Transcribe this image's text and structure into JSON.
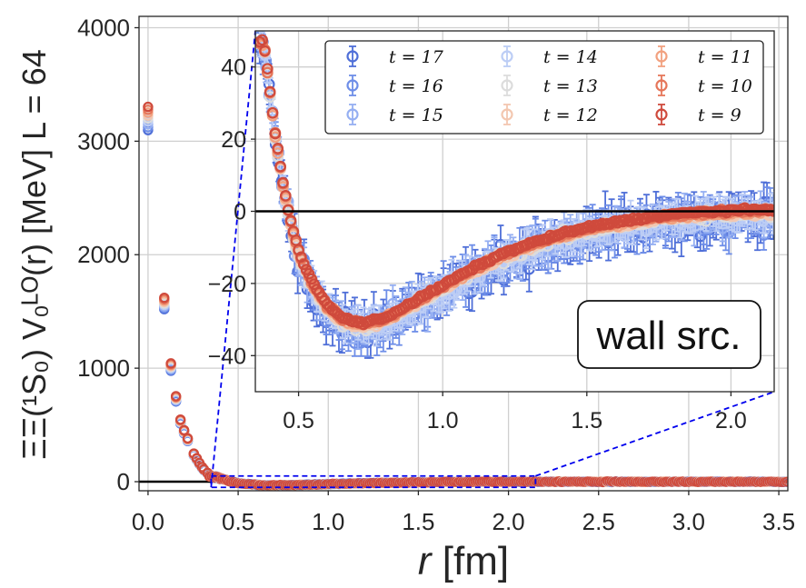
{
  "chart_data": {
    "type": "scatter",
    "xlabel_italic": "r",
    "xlabel_unit": " [fm]",
    "ylabel": "ΞΞ(¹S₀) V₀ᴸᴼ(r) [MeV] L = 64",
    "xlim": [
      -0.05,
      3.55
    ],
    "ylim": [
      -80,
      4100
    ],
    "xticks": [
      "0.0",
      "0.5",
      "1.0",
      "1.5",
      "2.0",
      "2.5",
      "3.0",
      "3.5"
    ],
    "yticks": [
      "0",
      "1000",
      "2000",
      "3000",
      "4000"
    ],
    "grid": true,
    "inset": {
      "xlim": [
        0.35,
        2.15
      ],
      "ylim": [
        -50,
        50
      ],
      "xticks": [
        "0.5",
        "1.0",
        "1.5",
        "2.0"
      ],
      "yticks": [
        "−40",
        "−20",
        "0",
        "20",
        "40"
      ],
      "annotation": "wall src."
    },
    "legend": {
      "placement": "inset top",
      "ncol": 3
    },
    "series": [
      {
        "name": "t = 17",
        "color": "#4f6fd8"
      },
      {
        "name": "t = 16",
        "color": "#6e8ee8"
      },
      {
        "name": "t = 15",
        "color": "#95aff2"
      },
      {
        "name": "t = 14",
        "color": "#bccdf5"
      },
      {
        "name": "t = 13",
        "color": "#dcdcdc"
      },
      {
        "name": "t = 12",
        "color": "#f3c7b0"
      },
      {
        "name": "t = 11",
        "color": "#f2a17f"
      },
      {
        "name": "t = 10",
        "color": "#e6765a"
      },
      {
        "name": "t = 9",
        "color": "#cf4a3c"
      }
    ],
    "main_points": [
      {
        "x": 0.0,
        "y": 3200
      },
      {
        "x": 0.09,
        "y": 1570
      },
      {
        "x": 0.127,
        "y": 1010
      },
      {
        "x": 0.155,
        "y": 730
      },
      {
        "x": 0.18,
        "y": 530
      },
      {
        "x": 0.2,
        "y": 440
      },
      {
        "x": 0.22,
        "y": 370
      },
      {
        "x": 0.254,
        "y": 240
      },
      {
        "x": 0.27,
        "y": 200
      },
      {
        "x": 0.285,
        "y": 160
      },
      {
        "x": 0.3,
        "y": 125
      },
      {
        "x": 0.31,
        "y": 105
      },
      {
        "x": 0.33,
        "y": 75
      },
      {
        "x": 0.35,
        "y": 52
      },
      {
        "x": 0.37,
        "y": 38
      },
      {
        "x": 0.4,
        "y": 25
      }
    ],
    "curve_points": [
      {
        "x": 0.38,
        "y": 46
      },
      {
        "x": 0.4,
        "y": 33
      },
      {
        "x": 0.42,
        "y": 20
      },
      {
        "x": 0.45,
        "y": 5
      },
      {
        "x": 0.48,
        "y": -6
      },
      {
        "x": 0.5,
        "y": -12
      },
      {
        "x": 0.55,
        "y": -21
      },
      {
        "x": 0.6,
        "y": -27
      },
      {
        "x": 0.65,
        "y": -30.5
      },
      {
        "x": 0.72,
        "y": -32
      },
      {
        "x": 0.8,
        "y": -30.5
      },
      {
        "x": 0.9,
        "y": -26
      },
      {
        "x": 1.0,
        "y": -21.5
      },
      {
        "x": 1.1,
        "y": -17
      },
      {
        "x": 1.2,
        "y": -13
      },
      {
        "x": 1.3,
        "y": -10
      },
      {
        "x": 1.4,
        "y": -7.5
      },
      {
        "x": 1.5,
        "y": -5.5
      },
      {
        "x": 1.6,
        "y": -4
      },
      {
        "x": 1.7,
        "y": -2.8
      },
      {
        "x": 1.8,
        "y": -1.8
      },
      {
        "x": 1.9,
        "y": -1.2
      },
      {
        "x": 2.0,
        "y": -0.8
      },
      {
        "x": 2.15,
        "y": -0.5
      }
    ],
    "colors": {
      "zero_line": "#000000",
      "zoom_box": "#0000ee",
      "grid": "#cfcfcf"
    }
  }
}
